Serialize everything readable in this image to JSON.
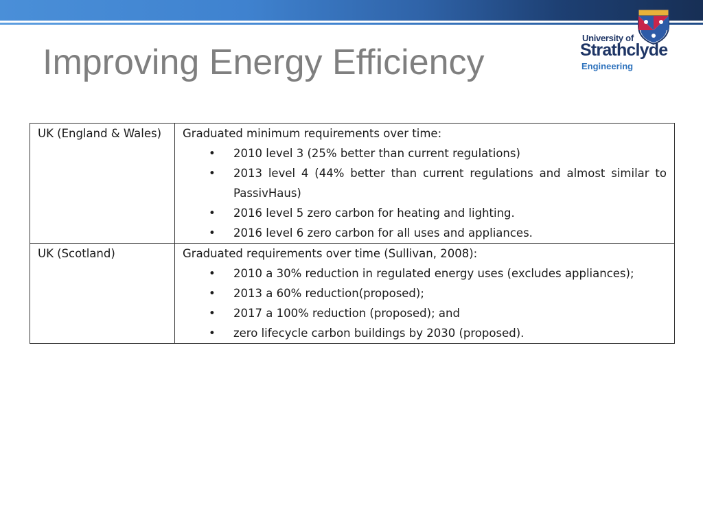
{
  "header": {
    "title": "Improving Energy Efficiency",
    "logo": {
      "line1": "University of",
      "line2": "Strathclyde",
      "line3": "Engineering"
    }
  },
  "table": {
    "rows": [
      {
        "region": "UK (England & Wales)",
        "intro": "Graduated minimum requirements over time:",
        "items": [
          "2010 level 3 (25% better than current regulations)",
          "2013 level 4 (44% better than current regulations and almost similar to PassivHaus)",
          "2016 level 5 zero carbon for heating and lighting.",
          "2016 level 6 zero carbon for all uses and appliances."
        ]
      },
      {
        "region": "UK (Scotland)",
        "intro": "Graduated requirements over time (Sullivan, 2008):",
        "items": [
          "2010 a 30% reduction in regulated energy uses (excludes appliances);",
          "2013 a 60% reduction(proposed);",
          "2017 a 100% reduction (proposed); and",
          "zero lifecycle carbon buildings by 2030 (proposed)."
        ]
      }
    ]
  },
  "colors": {
    "title": "#7f7f7f",
    "brand_navy": "#1e3565",
    "brand_blue": "#2f73bd"
  }
}
